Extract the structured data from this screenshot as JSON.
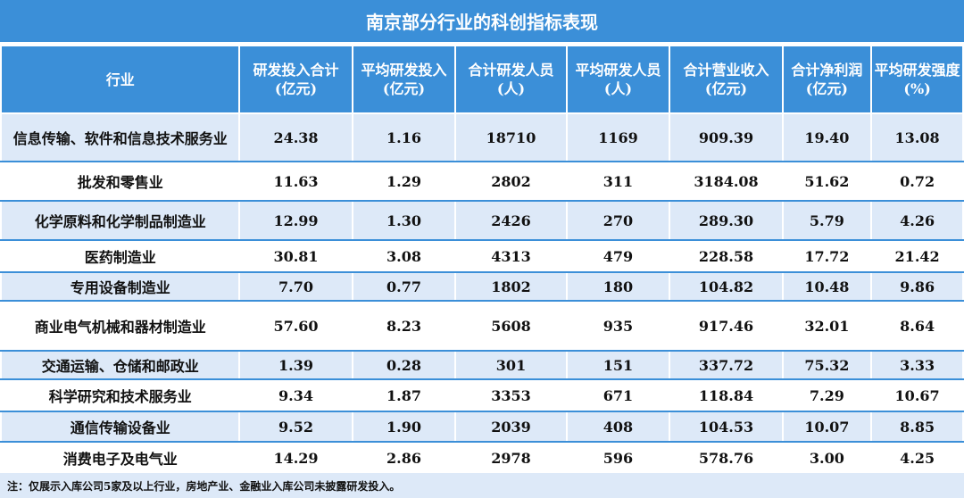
{
  "title": "南京部分行业的科创指标表现",
  "columns": [
    "行业",
    "研发投入合计\n(亿元)",
    "平均研发投入\n(亿元)",
    "合计研发人员\n(人)",
    "平均研发人员\n(人)",
    "合计营业收入\n(亿元)",
    "合计净利润\n(亿元)",
    "平均研发强度\n(%)"
  ],
  "rows": [
    [
      "信息传输、软件和信息技术服务业",
      "24.38",
      "1.16",
      "18710",
      "1169",
      "909.39",
      "19.40",
      "13.08"
    ],
    [
      "批发和零售业",
      "11.63",
      "1.29",
      "2802",
      "311",
      "3184.08",
      "51.62",
      "0.72"
    ],
    [
      "化学原料和化学制品制造业",
      "12.99",
      "1.30",
      "2426",
      "270",
      "289.30",
      "5.79",
      "4.26"
    ],
    [
      "医药制造业",
      "30.81",
      "3.08",
      "4313",
      "479",
      "228.58",
      "17.72",
      "21.42"
    ],
    [
      "专用设备制造业",
      "7.70",
      "0.77",
      "1802",
      "180",
      "104.82",
      "10.48",
      "9.86"
    ],
    [
      "商业电气机械和器材制造业",
      "57.60",
      "8.23",
      "5608",
      "935",
      "917.46",
      "32.01",
      "8.64"
    ],
    [
      "交通运输、仓储和邮政业",
      "1.39",
      "0.28",
      "301",
      "151",
      "337.72",
      "75.32",
      "3.33"
    ],
    [
      "科学研究和技术服务业",
      "9.34",
      "1.87",
      "3353",
      "671",
      "118.84",
      "7.29",
      "10.67"
    ],
    [
      "通信传输设备业",
      "9.52",
      "1.90",
      "2039",
      "408",
      "104.53",
      "10.07",
      "8.85"
    ],
    [
      "消费电子及电气业",
      "14.29",
      "2.86",
      "2978",
      "596",
      "578.76",
      "3.00",
      "4.25"
    ]
  ],
  "footnote": "注：仅展示入库公司5家及以上行业，房地产业、金融业入库公司未披露研发投入。",
  "colors": {
    "header_blue": "#3b8fd8",
    "row_tint": "#dde9f8"
  }
}
